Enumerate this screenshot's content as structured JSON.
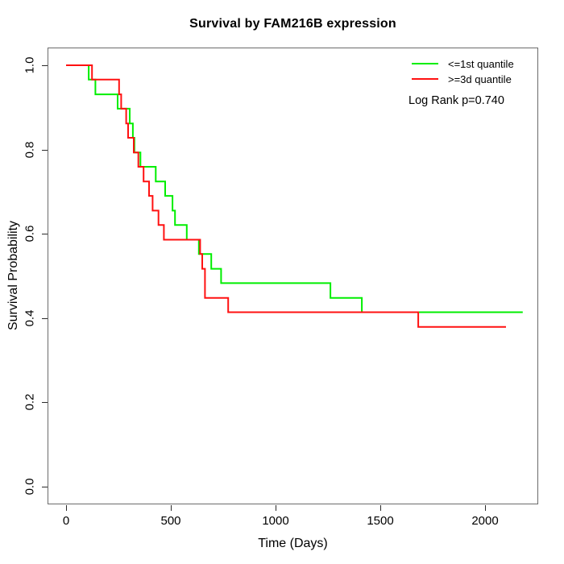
{
  "title": "Survival by FAM216B expression",
  "x_axis": {
    "label": "Time (Days)",
    "tick_labels": [
      "0",
      "500",
      "1000",
      "1500",
      "2000"
    ]
  },
  "y_axis": {
    "label": "Survival Probability",
    "tick_labels": [
      "0.0",
      "0.2",
      "0.4",
      "0.6",
      "0.8",
      "1.0"
    ]
  },
  "legend": {
    "items": [
      {
        "label": "<=1st quantile",
        "color": "#00ee00"
      },
      {
        "label": ">=3d quantile",
        "color": "#ff1111"
      }
    ],
    "annotation": "Log Rank p=0.740"
  },
  "chart_data": {
    "type": "line",
    "variant": "kaplan-meier-step",
    "title": "Survival by FAM216B expression",
    "xlabel": "Time (Days)",
    "ylabel": "Survival Probability",
    "xlim": [
      0,
      2200
    ],
    "ylim": [
      0.0,
      1.0
    ],
    "x_ticks": [
      0,
      500,
      1000,
      1500,
      2000
    ],
    "y_ticks": [
      0.0,
      0.2,
      0.4,
      0.6,
      0.8,
      1.0
    ],
    "grid": false,
    "legend_position": "top-right",
    "annotation": "Log Rank p=0.740",
    "series": [
      {
        "name": "<=1st quantile",
        "color": "#00ee00",
        "end_time": 2180,
        "steps": [
          [
            0,
            1.0
          ],
          [
            108,
            0.966
          ],
          [
            140,
            0.931
          ],
          [
            246,
            0.897
          ],
          [
            304,
            0.862
          ],
          [
            319,
            0.828
          ],
          [
            326,
            0.793
          ],
          [
            355,
            0.759
          ],
          [
            428,
            0.724
          ],
          [
            473,
            0.69
          ],
          [
            508,
            0.655
          ],
          [
            520,
            0.621
          ],
          [
            576,
            0.586
          ],
          [
            634,
            0.552
          ],
          [
            693,
            0.517
          ],
          [
            740,
            0.483
          ],
          [
            1262,
            0.448
          ],
          [
            1412,
            0.414
          ]
        ]
      },
      {
        "name": ">=3d quantile",
        "color": "#ff1111",
        "end_time": 2100,
        "steps": [
          [
            0,
            1.0
          ],
          [
            124,
            0.966
          ],
          [
            253,
            0.931
          ],
          [
            263,
            0.897
          ],
          [
            287,
            0.862
          ],
          [
            296,
            0.828
          ],
          [
            323,
            0.793
          ],
          [
            345,
            0.759
          ],
          [
            370,
            0.724
          ],
          [
            396,
            0.69
          ],
          [
            413,
            0.655
          ],
          [
            441,
            0.621
          ],
          [
            467,
            0.586
          ],
          [
            640,
            0.552
          ],
          [
            650,
            0.517
          ],
          [
            663,
            0.448
          ],
          [
            774,
            0.414
          ],
          [
            1681,
            0.379
          ]
        ]
      }
    ]
  }
}
